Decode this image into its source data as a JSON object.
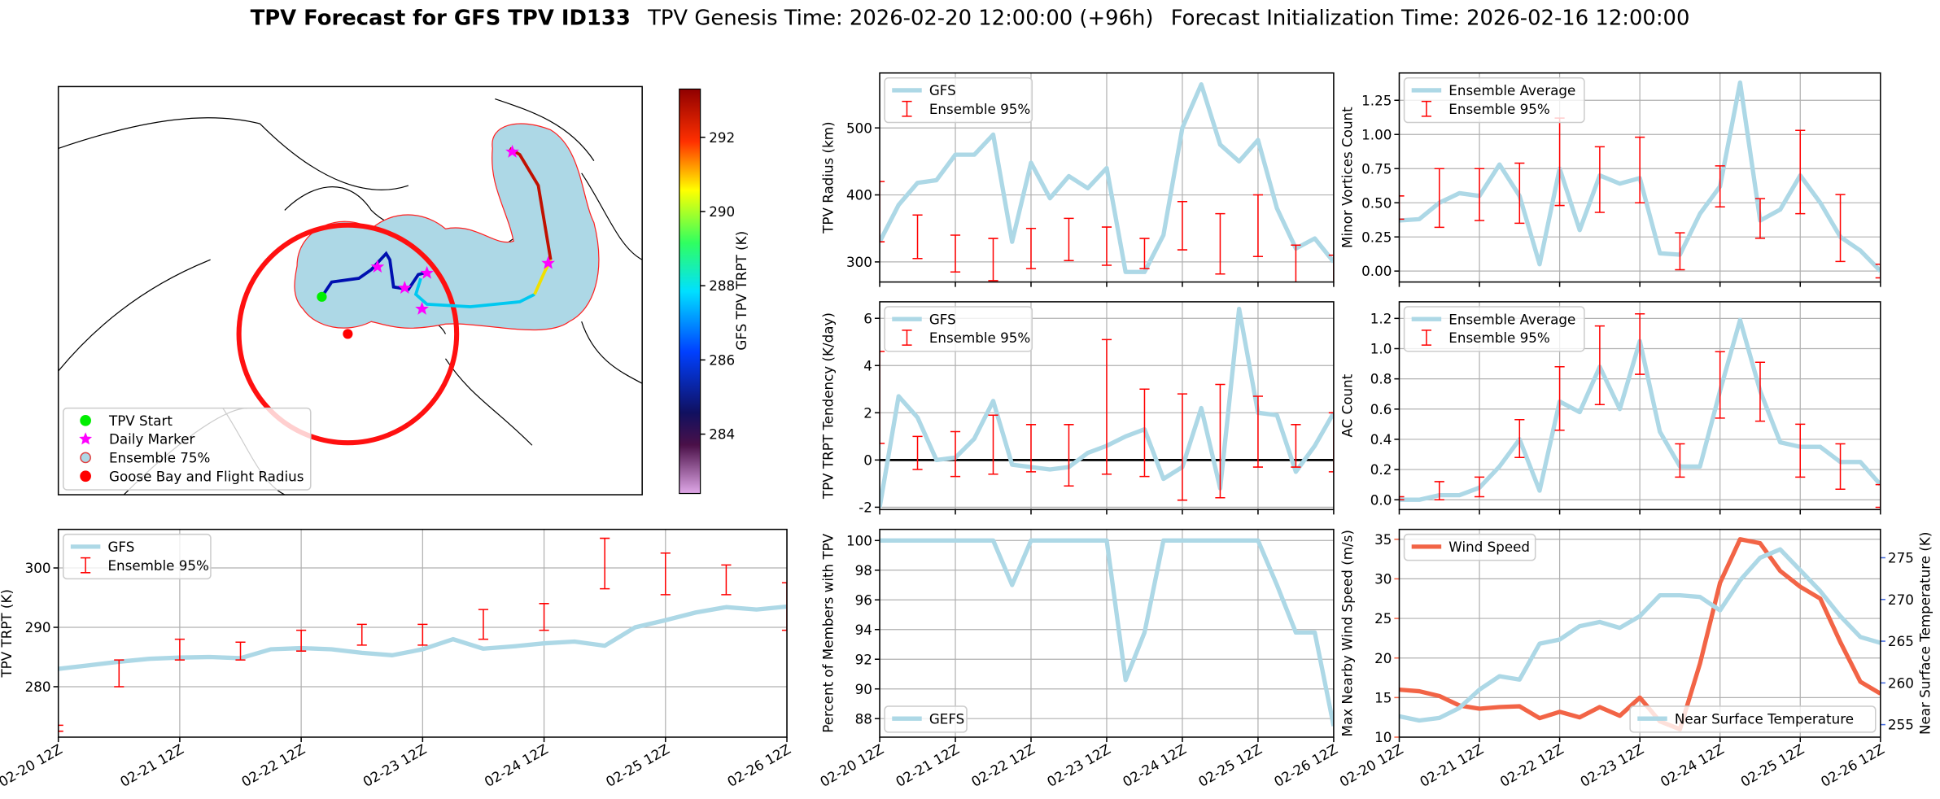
{
  "title": {
    "bold": "TPV Forecast for GFS TPV ID133",
    "genesis": "TPV Genesis Time: 2026-02-20 12:00:00 (+96h)",
    "init": "Forecast Initialization Time: 2026-02-16 12:00:00"
  },
  "chart_data": [
    {
      "type": "map",
      "legend": [
        {
          "label": "TPV Start",
          "color": "#00ee00",
          "marker": "circle"
        },
        {
          "label": "Daily Marker",
          "color": "#ff00ff",
          "marker": "star"
        },
        {
          "label": "Ensemble 75%",
          "color": "#add8e6",
          "marker": "ring"
        },
        {
          "label": "Goose Bay and Flight Radius",
          "color": "#ff0000",
          "marker": "circle"
        }
      ],
      "legend_loc": "lower left",
      "colorbar_label": "GFS TPV TRPT (K)",
      "colorbar_lim": [
        282.4,
        293.3
      ],
      "colorbar_ticks": [
        284,
        286,
        288,
        290,
        292
      ]
    },
    {
      "type": "line",
      "ylabel": "TPV Radius (km)",
      "grid": true,
      "legend": "upper left",
      "xticklabels": false,
      "x": [
        0,
        6,
        12,
        18,
        24,
        30,
        36,
        42,
        48,
        54,
        60,
        66,
        72,
        78,
        84,
        90,
        96,
        102,
        108,
        114,
        120,
        126,
        132,
        138,
        144
      ],
      "xlim": [
        0,
        144
      ],
      "xticks": [
        {
          "value": 0,
          "label": "02-20 12Z"
        },
        {
          "value": 24,
          "label": "02-21 12Z"
        },
        {
          "value": 48,
          "label": "02-22 12Z"
        },
        {
          "value": 72,
          "label": "02-23 12Z"
        },
        {
          "value": 96,
          "label": "02-24 12Z"
        },
        {
          "value": 120,
          "label": "02-25 12Z"
        },
        {
          "value": 144,
          "label": "02-26 12Z"
        }
      ],
      "ylim": [
        270,
        582
      ],
      "yticks": [
        300,
        400,
        500
      ],
      "series": [
        {
          "name": "GFS",
          "color": "#add8e6",
          "values": [
            330,
            385,
            418,
            422,
            460,
            460,
            490,
            330,
            448,
            395,
            428,
            410,
            440,
            285,
            285,
            340,
            500,
            565,
            475,
            450,
            482,
            380,
            320,
            335,
            300
          ]
        }
      ],
      "errorbars": {
        "name": "Ensemble 95%",
        "color": "#ff0000",
        "x": [
          0,
          12,
          24,
          36,
          48,
          60,
          72,
          84,
          96,
          108,
          120,
          132,
          144
        ],
        "low": [
          330,
          305,
          285,
          272,
          290,
          302,
          295,
          290,
          318,
          282,
          308,
          245,
          220
        ],
        "high": [
          420,
          370,
          340,
          335,
          350,
          365,
          352,
          335,
          390,
          372,
          400,
          325,
          310
        ]
      }
    },
    {
      "type": "line",
      "ylabel": "Minor Vortices Count",
      "grid": true,
      "legend": "upper left",
      "xticklabels": false,
      "x": [
        0,
        6,
        12,
        18,
        24,
        30,
        36,
        42,
        48,
        54,
        60,
        66,
        72,
        78,
        84,
        90,
        96,
        102,
        108,
        114,
        120,
        126,
        132,
        138,
        144
      ],
      "xlim": [
        0,
        144
      ],
      "xticks": [
        {
          "value": 0,
          "label": "02-20 12Z"
        },
        {
          "value": 24,
          "label": "02-21 12Z"
        },
        {
          "value": 48,
          "label": "02-22 12Z"
        },
        {
          "value": 72,
          "label": "02-23 12Z"
        },
        {
          "value": 96,
          "label": "02-24 12Z"
        },
        {
          "value": 120,
          "label": "02-25 12Z"
        },
        {
          "value": 144,
          "label": "02-26 12Z"
        }
      ],
      "ylim": [
        -0.08,
        1.45
      ],
      "yticks": [
        {
          "value": 0,
          "label": "0.00"
        },
        {
          "value": 0.25,
          "label": "0.25"
        },
        {
          "value": 0.5,
          "label": "0.50"
        },
        {
          "value": 0.75,
          "label": "0.75"
        },
        {
          "value": 1,
          "label": "1.00"
        },
        {
          "value": 1.25,
          "label": "1.25"
        }
      ],
      "series": [
        {
          "name": "Ensemble Average",
          "color": "#add8e6",
          "values": [
            0.37,
            0.38,
            0.5,
            0.57,
            0.55,
            0.78,
            0.55,
            0.05,
            0.75,
            0.3,
            0.7,
            0.64,
            0.68,
            0.13,
            0.12,
            0.42,
            0.62,
            1.38,
            0.37,
            0.45,
            0.7,
            0.5,
            0.25,
            0.15,
            0
          ]
        }
      ],
      "errorbars": {
        "name": "Ensemble 95%",
        "color": "#ff0000",
        "x": [
          0,
          12,
          24,
          36,
          48,
          60,
          72,
          84,
          96,
          108,
          120,
          132,
          144
        ],
        "low": [
          0.38,
          0.32,
          0.37,
          0.35,
          0.48,
          0.43,
          0.5,
          0.01,
          0.47,
          0.24,
          0.42,
          0.07,
          -0.05
        ],
        "high": [
          0.55,
          0.75,
          0.75,
          0.79,
          1.12,
          0.91,
          0.98,
          0.28,
          0.77,
          0.53,
          1.03,
          0.56,
          0.05
        ]
      }
    },
    {
      "type": "line",
      "ylabel": "TPV TRPT Tendency (K/day)",
      "grid": true,
      "legend": "upper left",
      "xticklabels": false,
      "hline": 0,
      "x": [
        0,
        6,
        12,
        18,
        24,
        30,
        36,
        42,
        48,
        54,
        60,
        66,
        72,
        78,
        84,
        90,
        96,
        102,
        108,
        114,
        120,
        126,
        132,
        138,
        144
      ],
      "xlim": [
        0,
        144
      ],
      "xticks": [
        {
          "value": 0,
          "label": "02-20 12Z"
        },
        {
          "value": 24,
          "label": "02-21 12Z"
        },
        {
          "value": 48,
          "label": "02-22 12Z"
        },
        {
          "value": 72,
          "label": "02-23 12Z"
        },
        {
          "value": 96,
          "label": "02-24 12Z"
        },
        {
          "value": 120,
          "label": "02-25 12Z"
        },
        {
          "value": 144,
          "label": "02-26 12Z"
        }
      ],
      "ylim": [
        -2.1,
        6.7
      ],
      "yticks": [
        -2,
        0,
        2,
        4,
        6
      ],
      "series": [
        {
          "name": "GFS",
          "color": "#add8e6",
          "values": [
            -2.0,
            2.7,
            1.8,
            0.0,
            0.1,
            0.9,
            2.5,
            -0.2,
            -0.3,
            -0.4,
            -0.3,
            0.3,
            0.6,
            1.0,
            1.3,
            -0.8,
            -0.3,
            2.2,
            -1.2,
            6.4,
            2.0,
            1.9,
            -0.5,
            0.6,
            2.0
          ]
        }
      ],
      "errorbars": {
        "name": "Ensemble 95%",
        "color": "#ff0000",
        "x": [
          0,
          12,
          24,
          36,
          48,
          60,
          72,
          84,
          96,
          108,
          120,
          132,
          144
        ],
        "low": [
          0.7,
          -0.4,
          -0.7,
          -0.6,
          -0.5,
          -1.1,
          -0.6,
          -0.7,
          -1.7,
          -1.6,
          -0.3,
          -0.3,
          -0.5
        ],
        "high": [
          4.6,
          1.0,
          1.2,
          1.9,
          1.5,
          1.5,
          5.1,
          3.0,
          2.8,
          3.2,
          2.7,
          1.5,
          2.0
        ]
      }
    },
    {
      "type": "line",
      "ylabel": "AC Count",
      "grid": true,
      "legend": "upper left",
      "xticklabels": false,
      "x": [
        0,
        6,
        12,
        18,
        24,
        30,
        36,
        42,
        48,
        54,
        60,
        66,
        72,
        78,
        84,
        90,
        96,
        102,
        108,
        114,
        120,
        126,
        132,
        138,
        144
      ],
      "xlim": [
        0,
        144
      ],
      "xticks": [
        {
          "value": 0,
          "label": "02-20 12Z"
        },
        {
          "value": 24,
          "label": "02-21 12Z"
        },
        {
          "value": 48,
          "label": "02-22 12Z"
        },
        {
          "value": 72,
          "label": "02-23 12Z"
        },
        {
          "value": 96,
          "label": "02-24 12Z"
        },
        {
          "value": 120,
          "label": "02-25 12Z"
        },
        {
          "value": 144,
          "label": "02-26 12Z"
        }
      ],
      "ylim": [
        -0.065,
        1.31
      ],
      "yticks": [
        {
          "value": 0,
          "label": "0.0"
        },
        {
          "value": 0.2,
          "label": "0.2"
        },
        {
          "value": 0.4,
          "label": "0.4"
        },
        {
          "value": 0.6,
          "label": "0.6"
        },
        {
          "value": 0.8,
          "label": "0.8"
        },
        {
          "value": 1,
          "label": "1.0"
        },
        {
          "value": 1.2,
          "label": "1.2"
        }
      ],
      "series": [
        {
          "name": "Ensemble Average",
          "color": "#add8e6",
          "values": [
            0,
            0,
            0.03,
            0.03,
            0.08,
            0.22,
            0.4,
            0.06,
            0.65,
            0.58,
            0.88,
            0.6,
            1.05,
            0.45,
            0.22,
            0.22,
            0.72,
            1.19,
            0.72,
            0.38,
            0.35,
            0.35,
            0.25,
            0.25,
            0.1
          ]
        }
      ],
      "errorbars": {
        "name": "Ensemble 95%",
        "color": "#ff0000",
        "x": [
          0,
          12,
          24,
          36,
          48,
          60,
          72,
          84,
          96,
          108,
          120,
          132,
          144
        ],
        "low": [
          0,
          0,
          0.02,
          0.28,
          0.46,
          0.63,
          0.83,
          0.15,
          0.54,
          0.52,
          0.15,
          0.07,
          -0.05
        ],
        "high": [
          0.02,
          0.12,
          0.15,
          0.53,
          0.88,
          1.15,
          1.23,
          0.37,
          0.98,
          0.91,
          0.5,
          0.37,
          0.1
        ]
      }
    },
    {
      "type": "line",
      "ylabel": "TPV TRPT (K)",
      "grid": true,
      "legend": "upper left",
      "xticklabels": true,
      "x": [
        0,
        6,
        12,
        18,
        24,
        30,
        36,
        42,
        48,
        54,
        60,
        66,
        72,
        78,
        84,
        90,
        96,
        102,
        108,
        114,
        120,
        126,
        132,
        138,
        144
      ],
      "xlim": [
        0,
        144
      ],
      "xticks": [
        {
          "value": 0,
          "label": "02-20 12Z"
        },
        {
          "value": 24,
          "label": "02-21 12Z"
        },
        {
          "value": 48,
          "label": "02-22 12Z"
        },
        {
          "value": 72,
          "label": "02-23 12Z"
        },
        {
          "value": 96,
          "label": "02-24 12Z"
        },
        {
          "value": 120,
          "label": "02-25 12Z"
        },
        {
          "value": 144,
          "label": "02-26 12Z"
        }
      ],
      "ylim": [
        271.5,
        306.5
      ],
      "yticks": [
        280,
        290,
        300
      ],
      "series": [
        {
          "name": "GFS",
          "color": "#add8e6",
          "values": [
            283,
            283.6,
            284.2,
            284.7,
            284.9,
            285,
            284.8,
            286.3,
            286.5,
            286.3,
            285.7,
            285.3,
            286.3,
            288,
            286.4,
            286.8,
            287.3,
            287.6,
            286.9,
            290,
            291.2,
            292.5,
            293.4,
            293,
            293.5
          ]
        }
      ],
      "errorbars": {
        "name": "Ensemble 95%",
        "color": "#ff0000",
        "x": [
          0,
          12,
          24,
          36,
          48,
          60,
          72,
          84,
          96,
          108,
          120,
          132,
          144
        ],
        "low": [
          272.5,
          280,
          284.5,
          284.5,
          286,
          287,
          287,
          288,
          289.5,
          296.5,
          295.5,
          295.5,
          289.5
        ],
        "high": [
          273.5,
          284.5,
          288,
          287.5,
          289.5,
          290.5,
          290.5,
          293,
          294,
          305,
          302.5,
          300.5,
          297.5
        ]
      }
    },
    {
      "type": "line",
      "ylabel": "Percent of Members with TPV",
      "grid": true,
      "legend": "lower left",
      "xticklabels": true,
      "x": [
        0,
        6,
        12,
        18,
        24,
        30,
        36,
        42,
        48,
        54,
        60,
        66,
        72,
        78,
        84,
        90,
        96,
        102,
        108,
        114,
        120,
        126,
        132,
        138,
        144
      ],
      "xlim": [
        0,
        144
      ],
      "xticks": [
        {
          "value": 0,
          "label": "02-20 12Z"
        },
        {
          "value": 24,
          "label": "02-21 12Z"
        },
        {
          "value": 48,
          "label": "02-22 12Z"
        },
        {
          "value": 72,
          "label": "02-23 12Z"
        },
        {
          "value": 96,
          "label": "02-24 12Z"
        },
        {
          "value": 120,
          "label": "02-25 12Z"
        },
        {
          "value": 144,
          "label": "02-26 12Z"
        }
      ],
      "ylim": [
        86.75,
        100.75
      ],
      "yticks": [
        88,
        90,
        92,
        94,
        96,
        98,
        100
      ],
      "series": [
        {
          "name": "GEFS",
          "color": "#add8e6",
          "values": [
            100,
            100,
            100,
            100,
            100,
            100,
            100,
            97,
            100,
            100,
            100,
            100,
            100,
            90.6,
            93.8,
            100,
            100,
            100,
            100,
            100,
            100,
            97,
            93.8,
            93.8,
            87.5
          ]
        }
      ]
    },
    {
      "type": "line",
      "ylabel": "Max Nearby Wind Speed (m/s)",
      "y2label": "Near Surface Temperature (K)",
      "grid": true,
      "xticklabels": true,
      "x": [
        0,
        6,
        12,
        18,
        24,
        30,
        36,
        42,
        48,
        54,
        60,
        66,
        72,
        78,
        84,
        90,
        96,
        102,
        108,
        114,
        120,
        126,
        132,
        138,
        144
      ],
      "xlim": [
        0,
        144
      ],
      "xticks": [
        {
          "value": 0,
          "label": "02-20 12Z"
        },
        {
          "value": 24,
          "label": "02-21 12Z"
        },
        {
          "value": 48,
          "label": "02-22 12Z"
        },
        {
          "value": 72,
          "label": "02-23 12Z"
        },
        {
          "value": 96,
          "label": "02-24 12Z"
        },
        {
          "value": 120,
          "label": "02-25 12Z"
        },
        {
          "value": 144,
          "label": "02-26 12Z"
        }
      ],
      "ylim": [
        10,
        36.25
      ],
      "yticks": [
        10,
        15,
        20,
        25,
        30,
        35
      ],
      "y2lim": [
        253.5,
        278.4
      ],
      "y2ticks": [
        255,
        260,
        265,
        270,
        275
      ],
      "series": [
        {
          "name": "Wind Speed",
          "color": "#f26446",
          "legend": "upper left",
          "values": [
            16,
            15.8,
            15.2,
            14,
            13.6,
            13.8,
            13.9,
            12.4,
            13.2,
            12.5,
            13.8,
            12.7,
            15,
            12,
            11,
            19.3,
            29.5,
            35,
            34.5,
            31,
            29,
            27.5,
            22,
            17,
            15.5
          ]
        },
        {
          "name": "Near Surface Temperature",
          "color": "#add8e6",
          "axis": "y2",
          "axis_color": "#4169e1",
          "legend": "lower right",
          "values": [
            256,
            255.5,
            255.8,
            257,
            259.2,
            260.8,
            260.4,
            264.7,
            265.2,
            266.8,
            267.3,
            266.6,
            268,
            270.5,
            270.5,
            270.3,
            268.7,
            272.3,
            275,
            276,
            273.5,
            271,
            268,
            265.5,
            264.8
          ]
        }
      ]
    }
  ]
}
